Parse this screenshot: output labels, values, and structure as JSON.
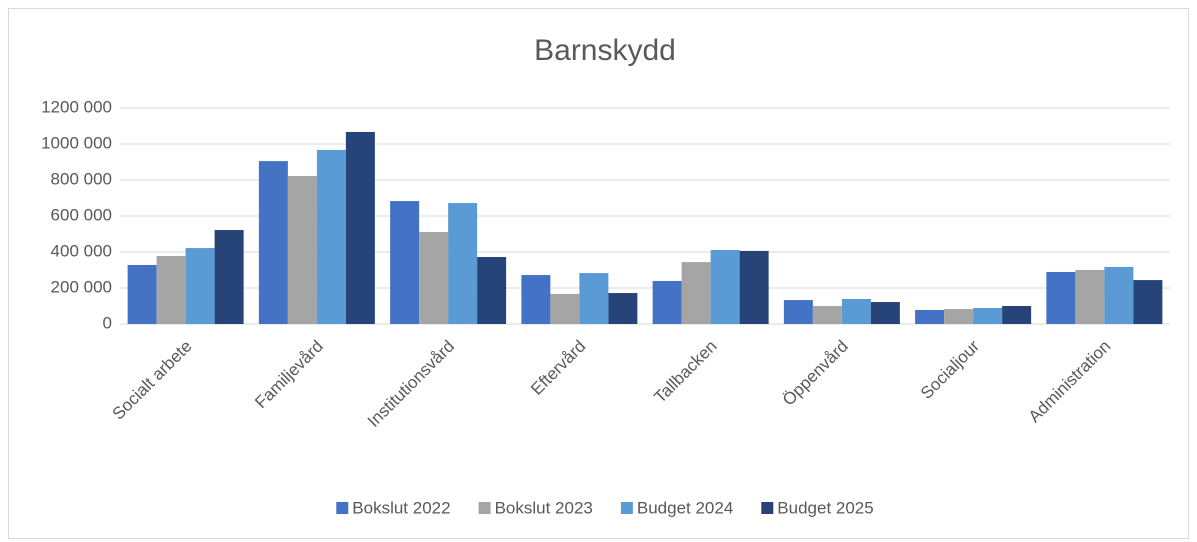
{
  "chart_data": {
    "type": "bar",
    "title": "Barnskydd",
    "categories": [
      "Socialt arbete",
      "Familjevård",
      "Institutionsvård",
      "Eftervård",
      "Tallbacken",
      "Öppenvård",
      "Socialjour",
      "Administration"
    ],
    "series": [
      {
        "name": "Bokslut 2022",
        "color": "#4472c4",
        "values": [
          328000,
          905000,
          683000,
          272000,
          239000,
          133000,
          78000,
          289000
        ]
      },
      {
        "name": "Bokslut 2023",
        "color": "#a5a5a5",
        "values": [
          378000,
          822000,
          511000,
          167000,
          344000,
          100000,
          83000,
          300000
        ]
      },
      {
        "name": "Budget 2024",
        "color": "#5b9bd5",
        "values": [
          422000,
          967000,
          672000,
          283000,
          411000,
          139000,
          89000,
          317000
        ]
      },
      {
        "name": "Budget 2025",
        "color": "#264478",
        "values": [
          522000,
          1067000,
          372000,
          172000,
          406000,
          122000,
          100000,
          244000
        ]
      }
    ],
    "ylim": [
      0,
      1200000
    ],
    "yticks": [
      0,
      {
        "value": 200000,
        "label": "200 000"
      },
      {
        "value": 400000,
        "label": "400 000"
      },
      {
        "value": 600000,
        "label": "600 000"
      },
      {
        "value": 800000,
        "label": "800 000"
      },
      {
        "value": 1000000,
        "label": "1000 000"
      },
      {
        "value": 1200000,
        "label": "1200 000"
      }
    ],
    "grid": true,
    "legend": "bottom"
  }
}
